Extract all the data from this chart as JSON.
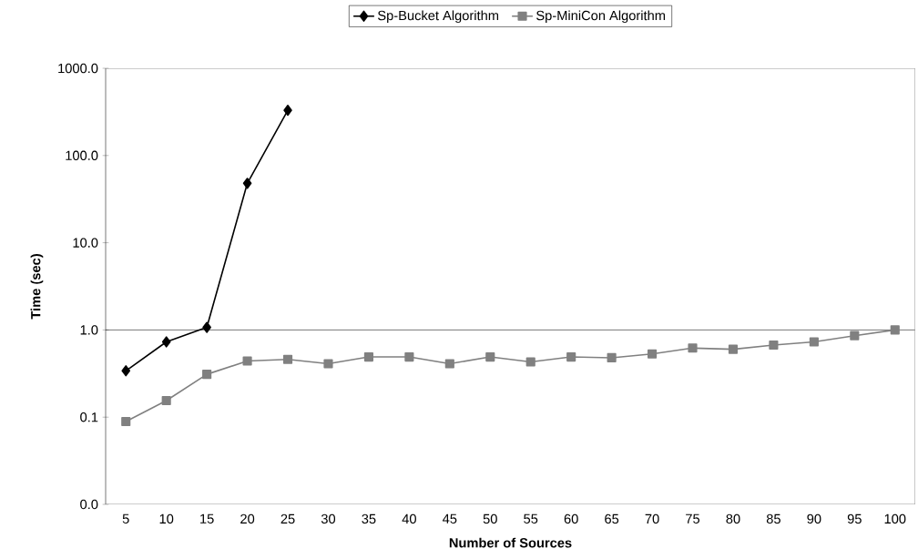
{
  "chart_data": {
    "type": "line",
    "xlabel": "Number of Sources",
    "ylabel": "Time (sec)",
    "categories": [
      "5",
      "10",
      "15",
      "20",
      "25",
      "30",
      "35",
      "40",
      "45",
      "50",
      "55",
      "60",
      "65",
      "70",
      "75",
      "80",
      "85",
      "90",
      "95",
      "100"
    ],
    "series": [
      {
        "name": "Sp-Bucket Algorithm",
        "color": "#000000",
        "marker": "diamond",
        "values": [
          0.34,
          0.73,
          1.07,
          48,
          330,
          null,
          null,
          null,
          null,
          null,
          null,
          null,
          null,
          null,
          null,
          null,
          null,
          null,
          null,
          null
        ]
      },
      {
        "name": "Sp-MiniCon Algorithm",
        "color": "#808080",
        "marker": "square",
        "values": [
          0.089,
          0.155,
          0.31,
          0.44,
          0.46,
          0.41,
          0.49,
          0.49,
          0.41,
          0.49,
          0.43,
          0.49,
          0.48,
          0.53,
          0.62,
          0.6,
          0.67,
          0.73,
          0.86,
          1.0
        ]
      }
    ],
    "log": "y",
    "ylim": [
      0.01,
      1000
    ],
    "yticks": [
      {
        "value": 0.01,
        "label": "0.0"
      },
      {
        "value": 0.1,
        "label": "0.1"
      },
      {
        "value": 1,
        "label": "1.0"
      },
      {
        "value": 10,
        "label": "10.0"
      },
      {
        "value": 100,
        "label": "100.0"
      },
      {
        "value": 1000,
        "label": "1000.0"
      }
    ],
    "legend": "top",
    "line_style": "solid"
  }
}
